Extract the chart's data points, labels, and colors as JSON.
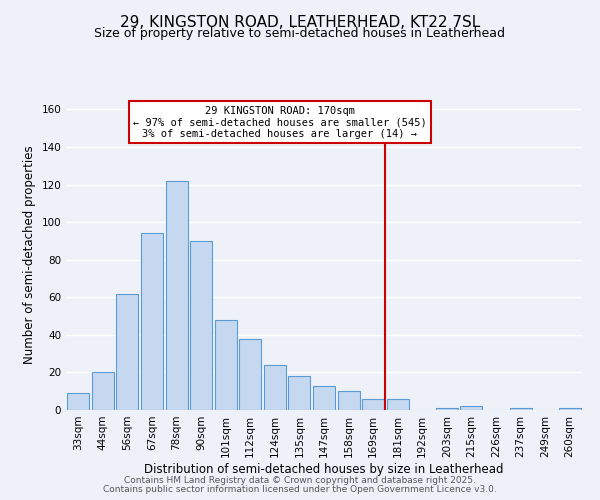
{
  "title": "29, KINGSTON ROAD, LEATHERHEAD, KT22 7SL",
  "subtitle": "Size of property relative to semi-detached houses in Leatherhead",
  "xlabel": "Distribution of semi-detached houses by size in Leatherhead",
  "ylabel": "Number of semi-detached properties",
  "categories": [
    "33sqm",
    "44sqm",
    "56sqm",
    "67sqm",
    "78sqm",
    "90sqm",
    "101sqm",
    "112sqm",
    "124sqm",
    "135sqm",
    "147sqm",
    "158sqm",
    "169sqm",
    "181sqm",
    "192sqm",
    "203sqm",
    "215sqm",
    "226sqm",
    "237sqm",
    "249sqm",
    "260sqm"
  ],
  "values": [
    9,
    20,
    62,
    94,
    122,
    90,
    48,
    38,
    24,
    18,
    13,
    10,
    6,
    6,
    0,
    1,
    2,
    0,
    1,
    0,
    1
  ],
  "bar_color": "#c5d8f0",
  "bar_edge_color": "#5b9bd5",
  "vline_color": "#cc0000",
  "annotation_title": "29 KINGSTON ROAD: 170sqm",
  "annotation_line1": "← 97% of semi-detached houses are smaller (545)",
  "annotation_line2": "3% of semi-detached houses are larger (14) →",
  "annotation_box_color": "#cc0000",
  "ylim": [
    0,
    165
  ],
  "yticks": [
    0,
    20,
    40,
    60,
    80,
    100,
    120,
    140,
    160
  ],
  "footer1": "Contains HM Land Registry data © Crown copyright and database right 2025.",
  "footer2": "Contains public sector information licensed under the Open Government Licence v3.0.",
  "background_color": "#eef2f8",
  "grid_color": "#ffffff",
  "title_fontsize": 11,
  "subtitle_fontsize": 9,
  "axis_label_fontsize": 8.5,
  "tick_fontsize": 7.5,
  "annotation_fontsize": 7.5,
  "footer_fontsize": 6.5
}
